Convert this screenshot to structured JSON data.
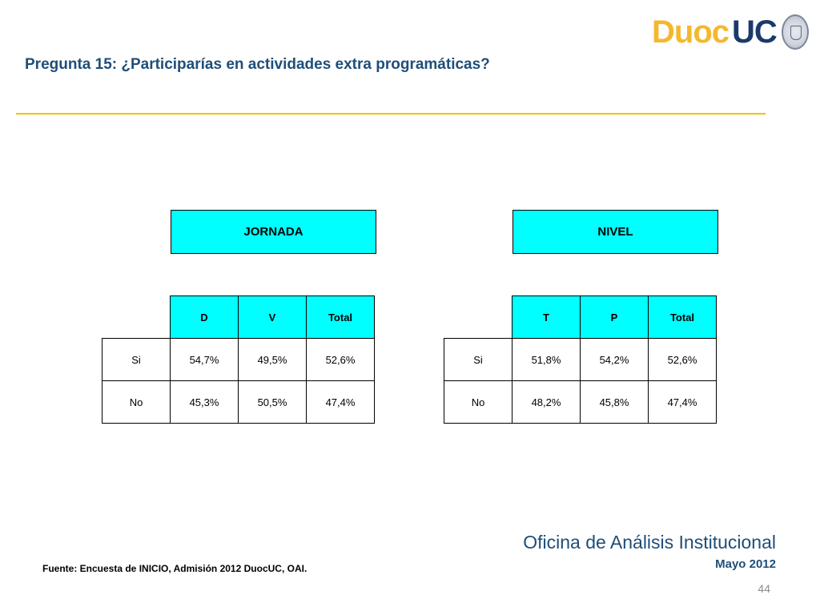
{
  "slide": {
    "title": "Pregunta 15: ¿Participarías en actividades extra programáticas?",
    "logo": {
      "word1": "Duoc",
      "word2": "UC",
      "emblem": "university-seal-icon"
    },
    "source": "Fuente: Encuesta de INICIO, Admisión 2012 DuocUC, OAI.",
    "office": "Oficina de Análisis Institucional",
    "date": "Mayo 2012",
    "page_number": "44",
    "colors": {
      "title": "#1f4e79",
      "rule": "#f2c200",
      "header_fill": "#00ffff",
      "logo_yellow": "#f4b82e",
      "logo_blue": "#1b3a6b"
    }
  },
  "tables": [
    {
      "heading": "JORNADA",
      "columns": [
        "D",
        "V",
        "Total"
      ],
      "rows": [
        {
          "label": "Si",
          "values": [
            "54,7%",
            "49,5%",
            "52,6%"
          ]
        },
        {
          "label": "No",
          "values": [
            "45,3%",
            "50,5%",
            "47,4%"
          ]
        }
      ]
    },
    {
      "heading": "NIVEL",
      "columns": [
        "T",
        "P",
        "Total"
      ],
      "rows": [
        {
          "label": "Si",
          "values": [
            "51,8%",
            "54,2%",
            "52,6%"
          ]
        },
        {
          "label": "No",
          "values": [
            "48,2%",
            "45,8%",
            "47,4%"
          ]
        }
      ]
    }
  ]
}
